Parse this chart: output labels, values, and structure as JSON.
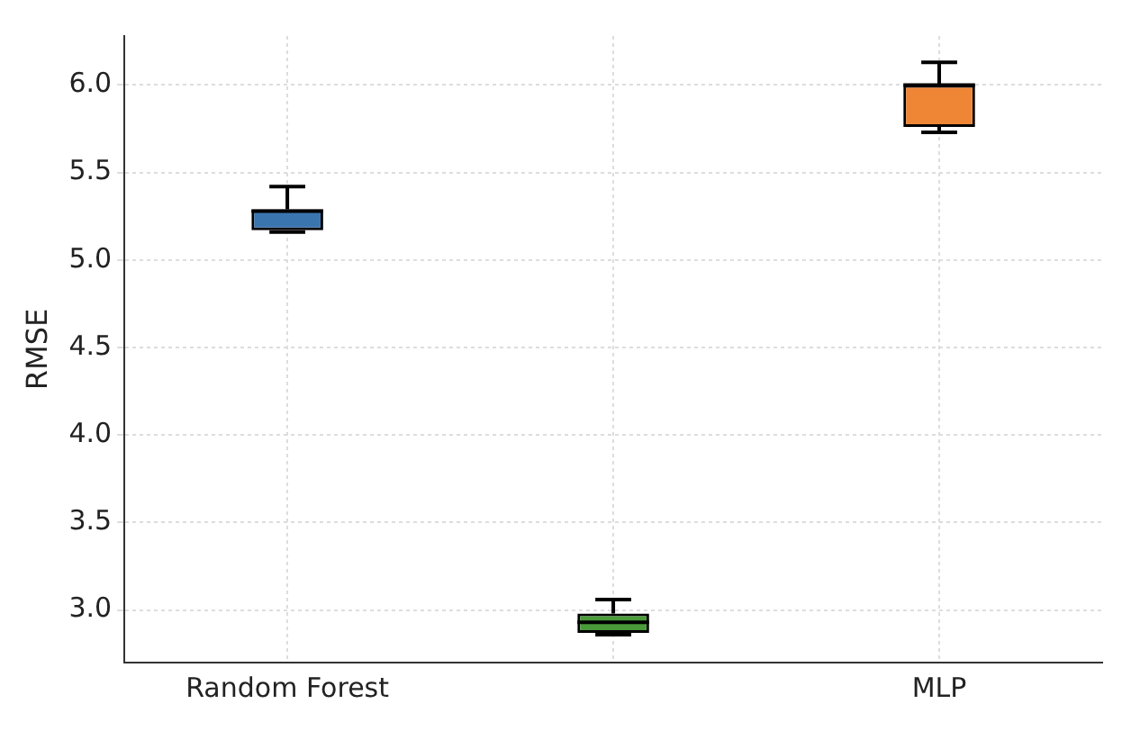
{
  "chart_data": {
    "type": "box",
    "ylabel": "RMSE",
    "categories": [
      "Random Forest",
      null,
      "MLP"
    ],
    "boxes": [
      {
        "low": 5.16,
        "q1": 5.17,
        "median": 5.28,
        "q3": 5.29,
        "high": 5.42
      },
      {
        "low": 2.86,
        "q1": 2.87,
        "median": 2.93,
        "q3": 2.98,
        "high": 3.06
      },
      {
        "low": 5.73,
        "q1": 5.76,
        "median": 6.0,
        "q3": 6.0,
        "high": 6.13
      }
    ],
    "colors": [
      "#3a75b0",
      "#4a9a3a",
      "#ef8636"
    ],
    "ylim": [
      2.7,
      6.28
    ],
    "yticks": [
      {
        "value": 3,
        "label": "3.0"
      },
      3.5,
      {
        "value": 4,
        "label": "4.0"
      },
      4.5,
      {
        "value": 5,
        "label": "5.0"
      },
      5.5,
      {
        "value": 6,
        "label": "6.0"
      }
    ],
    "grid": true,
    "legend": false
  }
}
